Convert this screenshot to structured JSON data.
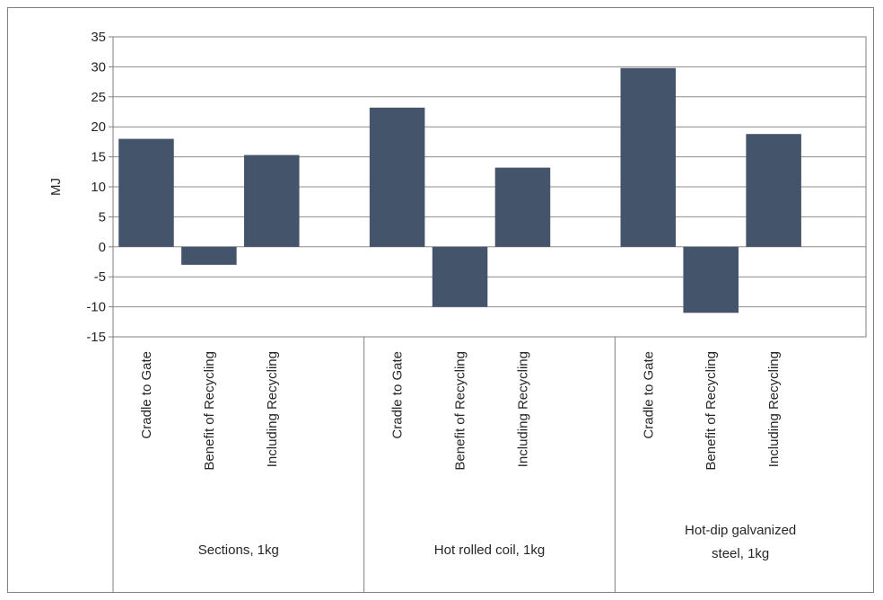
{
  "chart_data": {
    "type": "bar",
    "ylabel": "MJ",
    "ylim": [
      -15,
      35
    ],
    "ytick_step": 5,
    "yticks": [
      "35",
      "30",
      "25",
      "20",
      "15",
      "10",
      "5",
      "0",
      "-5",
      "-10",
      "-15"
    ],
    "grid": true,
    "bar_color": "#44546a",
    "groups": [
      {
        "label_lines": [
          "Sections, 1kg"
        ],
        "categories": [
          "Cradle to Gate",
          "Benefit of Recycling",
          "Including Recycling"
        ],
        "values": [
          18,
          -3,
          15.3
        ]
      },
      {
        "label_lines": [
          "Hot rolled coil, 1kg"
        ],
        "categories": [
          "Cradle to Gate",
          "Benefit of Recycling",
          "Including Recycling"
        ],
        "values": [
          23.2,
          -10,
          13.2
        ]
      },
      {
        "label_lines": [
          "Hot-dip galvanized",
          "steel, 1kg"
        ],
        "categories": [
          "Cradle to Gate",
          "Benefit of Recycling",
          "Including Recycling"
        ],
        "values": [
          29.8,
          -11,
          18.8
        ]
      }
    ]
  }
}
